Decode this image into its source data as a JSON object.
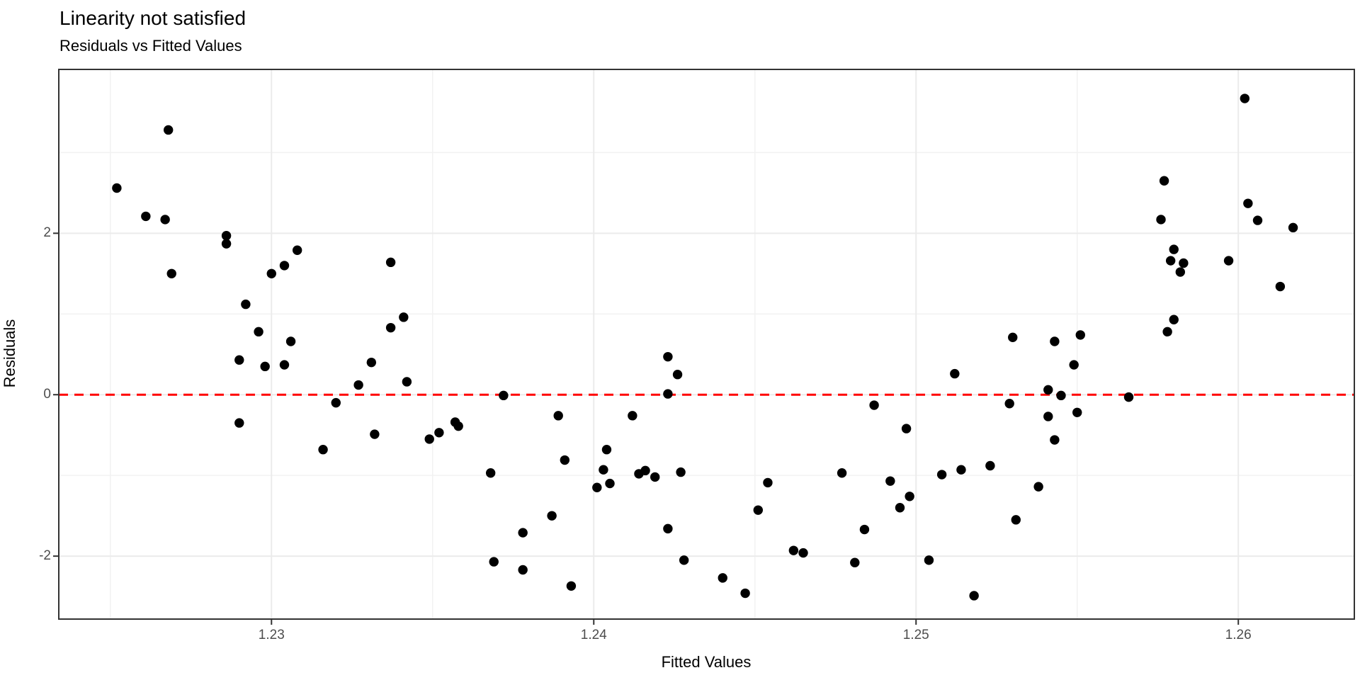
{
  "chart_data": {
    "type": "scatter",
    "title": "Linearity not satisfied",
    "subtitle": "Residuals vs Fitted Values",
    "xlabel": "Fitted Values",
    "ylabel": "Residuals",
    "xlim": [
      1.2234,
      1.2636
    ],
    "ylim": [
      -2.78,
      4.03
    ],
    "x_ticks": [
      1.23,
      1.24,
      1.25,
      1.26
    ],
    "x_tick_labels": [
      "1.23",
      "1.24",
      "1.25",
      "1.26"
    ],
    "x_minor_ticks": [
      1.225,
      1.235,
      1.245,
      1.255
    ],
    "y_ticks": [
      -2,
      0,
      2
    ],
    "y_tick_labels": [
      "-2",
      "0",
      "2"
    ],
    "y_minor_ticks": [
      -1,
      1,
      3
    ],
    "legend_position": "none",
    "grid": true,
    "reference_line": {
      "y": 0,
      "color": "#ff0000",
      "style": "dashed",
      "width": 3,
      "dash": "13 9"
    },
    "colors": {
      "point": "#000000",
      "panel_border": "#333333",
      "grid_major": "#ebebeb",
      "grid_minor": "#f2f2f2",
      "tick_mark": "#333333",
      "tick_text": "#4d4d4d",
      "text": "#000000",
      "background": "#ffffff"
    },
    "point_radius": 6.7,
    "points": [
      [
        1.2252,
        2.56
      ],
      [
        1.2268,
        3.28
      ],
      [
        1.2261,
        2.21
      ],
      [
        1.2267,
        2.17
      ],
      [
        1.2286,
        1.97
      ],
      [
        1.2286,
        1.87
      ],
      [
        1.2308,
        1.79
      ],
      [
        1.2304,
        1.6
      ],
      [
        1.23,
        1.5
      ],
      [
        1.2269,
        1.5
      ],
      [
        1.2292,
        1.12
      ],
      [
        1.2296,
        0.78
      ],
      [
        1.2306,
        0.66
      ],
      [
        1.229,
        0.43
      ],
      [
        1.2298,
        0.35
      ],
      [
        1.2304,
        0.37
      ],
      [
        1.232,
        -0.1
      ],
      [
        1.2327,
        0.12
      ],
      [
        1.2331,
        0.4
      ],
      [
        1.2332,
        -0.49
      ],
      [
        1.2316,
        -0.68
      ],
      [
        1.229,
        -0.35
      ],
      [
        1.2337,
        1.64
      ],
      [
        1.2341,
        0.96
      ],
      [
        1.2337,
        0.83
      ],
      [
        1.2342,
        0.16
      ],
      [
        1.2372,
        -0.01
      ],
      [
        1.2357,
        -0.34
      ],
      [
        1.2358,
        -0.39
      ],
      [
        1.2352,
        -0.47
      ],
      [
        1.2349,
        -0.55
      ],
      [
        1.2389,
        -0.26
      ],
      [
        1.2391,
        -0.81
      ],
      [
        1.2368,
        -0.97
      ],
      [
        1.2387,
        -1.5
      ],
      [
        1.2378,
        -1.71
      ],
      [
        1.2369,
        -2.07
      ],
      [
        1.2378,
        -2.17
      ],
      [
        1.2393,
        -2.37
      ],
      [
        1.2404,
        -0.68
      ],
      [
        1.2403,
        -0.93
      ],
      [
        1.2401,
        -1.15
      ],
      [
        1.2405,
        -1.1
      ],
      [
        1.2414,
        -0.98
      ],
      [
        1.2416,
        -0.94
      ],
      [
        1.2419,
        -1.02
      ],
      [
        1.2427,
        -0.96
      ],
      [
        1.2412,
        -0.26
      ],
      [
        1.2423,
        0.47
      ],
      [
        1.2426,
        0.25
      ],
      [
        1.2423,
        0.01
      ],
      [
        1.2423,
        -1.66
      ],
      [
        1.2428,
        -2.05
      ],
      [
        1.2512,
        0.26
      ],
      [
        1.2487,
        -0.13
      ],
      [
        1.2529,
        -0.11
      ],
      [
        1.2497,
        -0.42
      ],
      [
        1.2477,
        -0.97
      ],
      [
        1.2454,
        -1.09
      ],
      [
        1.2492,
        -1.07
      ],
      [
        1.2508,
        -0.99
      ],
      [
        1.2514,
        -0.93
      ],
      [
        1.2523,
        -0.88
      ],
      [
        1.2498,
        -1.26
      ],
      [
        1.2495,
        -1.4
      ],
      [
        1.2451,
        -1.43
      ],
      [
        1.2484,
        -1.67
      ],
      [
        1.2462,
        -1.93
      ],
      [
        1.2465,
        -1.96
      ],
      [
        1.2481,
        -2.08
      ],
      [
        1.2504,
        -2.05
      ],
      [
        1.244,
        -2.27
      ],
      [
        1.2447,
        -2.46
      ],
      [
        1.2518,
        -2.49
      ],
      [
        1.2531,
        -1.55
      ],
      [
        1.253,
        0.71
      ],
      [
        1.2602,
        3.67
      ],
      [
        1.2577,
        2.65
      ],
      [
        1.2576,
        2.17
      ],
      [
        1.2603,
        2.37
      ],
      [
        1.2606,
        2.16
      ],
      [
        1.2617,
        2.07
      ],
      [
        1.258,
        1.8
      ],
      [
        1.2579,
        1.66
      ],
      [
        1.2583,
        1.63
      ],
      [
        1.2582,
        1.52
      ],
      [
        1.2597,
        1.66
      ],
      [
        1.2613,
        1.34
      ],
      [
        1.258,
        0.93
      ],
      [
        1.2578,
        0.78
      ],
      [
        1.2551,
        0.74
      ],
      [
        1.2543,
        0.66
      ],
      [
        1.2549,
        0.37
      ],
      [
        1.2541,
        0.06
      ],
      [
        1.2545,
        -0.01
      ],
      [
        1.2566,
        -0.03
      ],
      [
        1.255,
        -0.22
      ],
      [
        1.2541,
        -0.27
      ],
      [
        1.2543,
        -0.56
      ],
      [
        1.2538,
        -1.14
      ]
    ]
  }
}
